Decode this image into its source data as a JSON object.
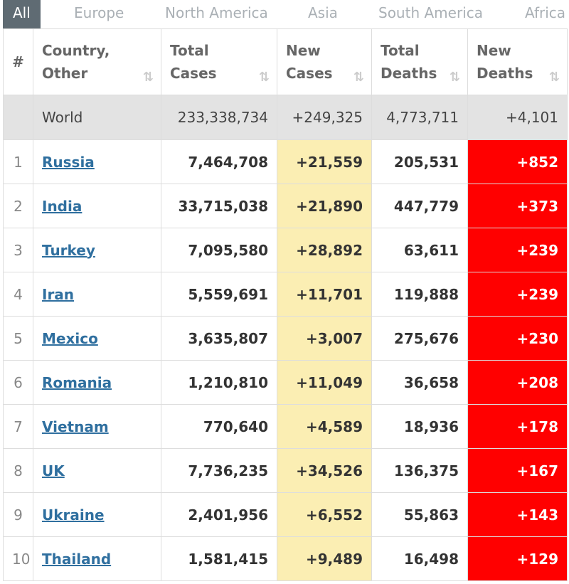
{
  "tabs": [
    "All",
    "Europe",
    "North America",
    "Asia",
    "South America",
    "Africa"
  ],
  "table": {
    "headers": [
      "#",
      "Country,\nOther",
      "Total\nCases",
      "New\nCases",
      "Total\nDeaths",
      "New\nDeaths"
    ],
    "world": [
      "World",
      "233,338,734",
      "+249,325",
      "4,773,711",
      "+4,101"
    ],
    "rows": [
      [
        "1",
        "Russia",
        "7,464,708",
        "+21,559",
        "205,531",
        "+852"
      ],
      [
        "2",
        "India",
        "33,715,038",
        "+21,890",
        "447,779",
        "+373"
      ],
      [
        "3",
        "Turkey",
        "7,095,580",
        "+28,892",
        "63,611",
        "+239"
      ],
      [
        "4",
        "Iran",
        "5,559,691",
        "+11,701",
        "119,888",
        "+239"
      ],
      [
        "5",
        "Mexico",
        "3,635,807",
        "+3,007",
        "275,676",
        "+230"
      ],
      [
        "6",
        "Romania",
        "1,210,810",
        "+11,049",
        "36,658",
        "+208"
      ],
      [
        "7",
        "Vietnam",
        "770,640",
        "+4,589",
        "18,936",
        "+178"
      ],
      [
        "8",
        "UK",
        "7,736,235",
        "+34,526",
        "136,375",
        "+167"
      ],
      [
        "9",
        "Ukraine",
        "2,401,956",
        "+6,552",
        "55,863",
        "+143"
      ],
      [
        "10",
        "Thailand",
        "1,581,415",
        "+9,489",
        "16,498",
        "+129"
      ]
    ]
  }
}
